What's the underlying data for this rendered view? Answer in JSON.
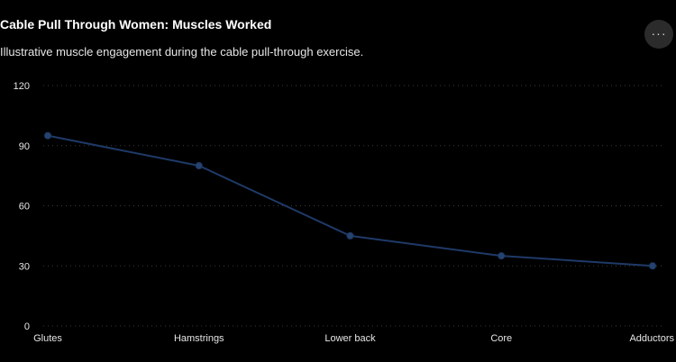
{
  "header": {
    "title": "Cable Pull Through Women: Muscles Worked",
    "subtitle": "Illustrative muscle engagement during the cable pull-through exercise.",
    "more_icon": "ellipsis-icon",
    "more_label": "···"
  },
  "colors": {
    "background": "#000000",
    "line": "#1f3a68",
    "marker": "#26436f",
    "grid": "#3a3a3a"
  },
  "chart_data": {
    "type": "line",
    "title": "Cable Pull Through Women: Muscles Worked",
    "subtitle": "Illustrative muscle engagement during the cable pull-through exercise.",
    "categories": [
      "Glutes",
      "Hamstrings",
      "Lower back",
      "Core",
      "Adductors"
    ],
    "series": [
      {
        "values": [
          95,
          80,
          45,
          35,
          30
        ]
      }
    ],
    "ylim": [
      0,
      120
    ],
    "yticks": [
      "0",
      "30",
      "60",
      "90",
      "120"
    ],
    "grid": true,
    "grid_style": "dotted-horizontal",
    "legend": "none"
  }
}
